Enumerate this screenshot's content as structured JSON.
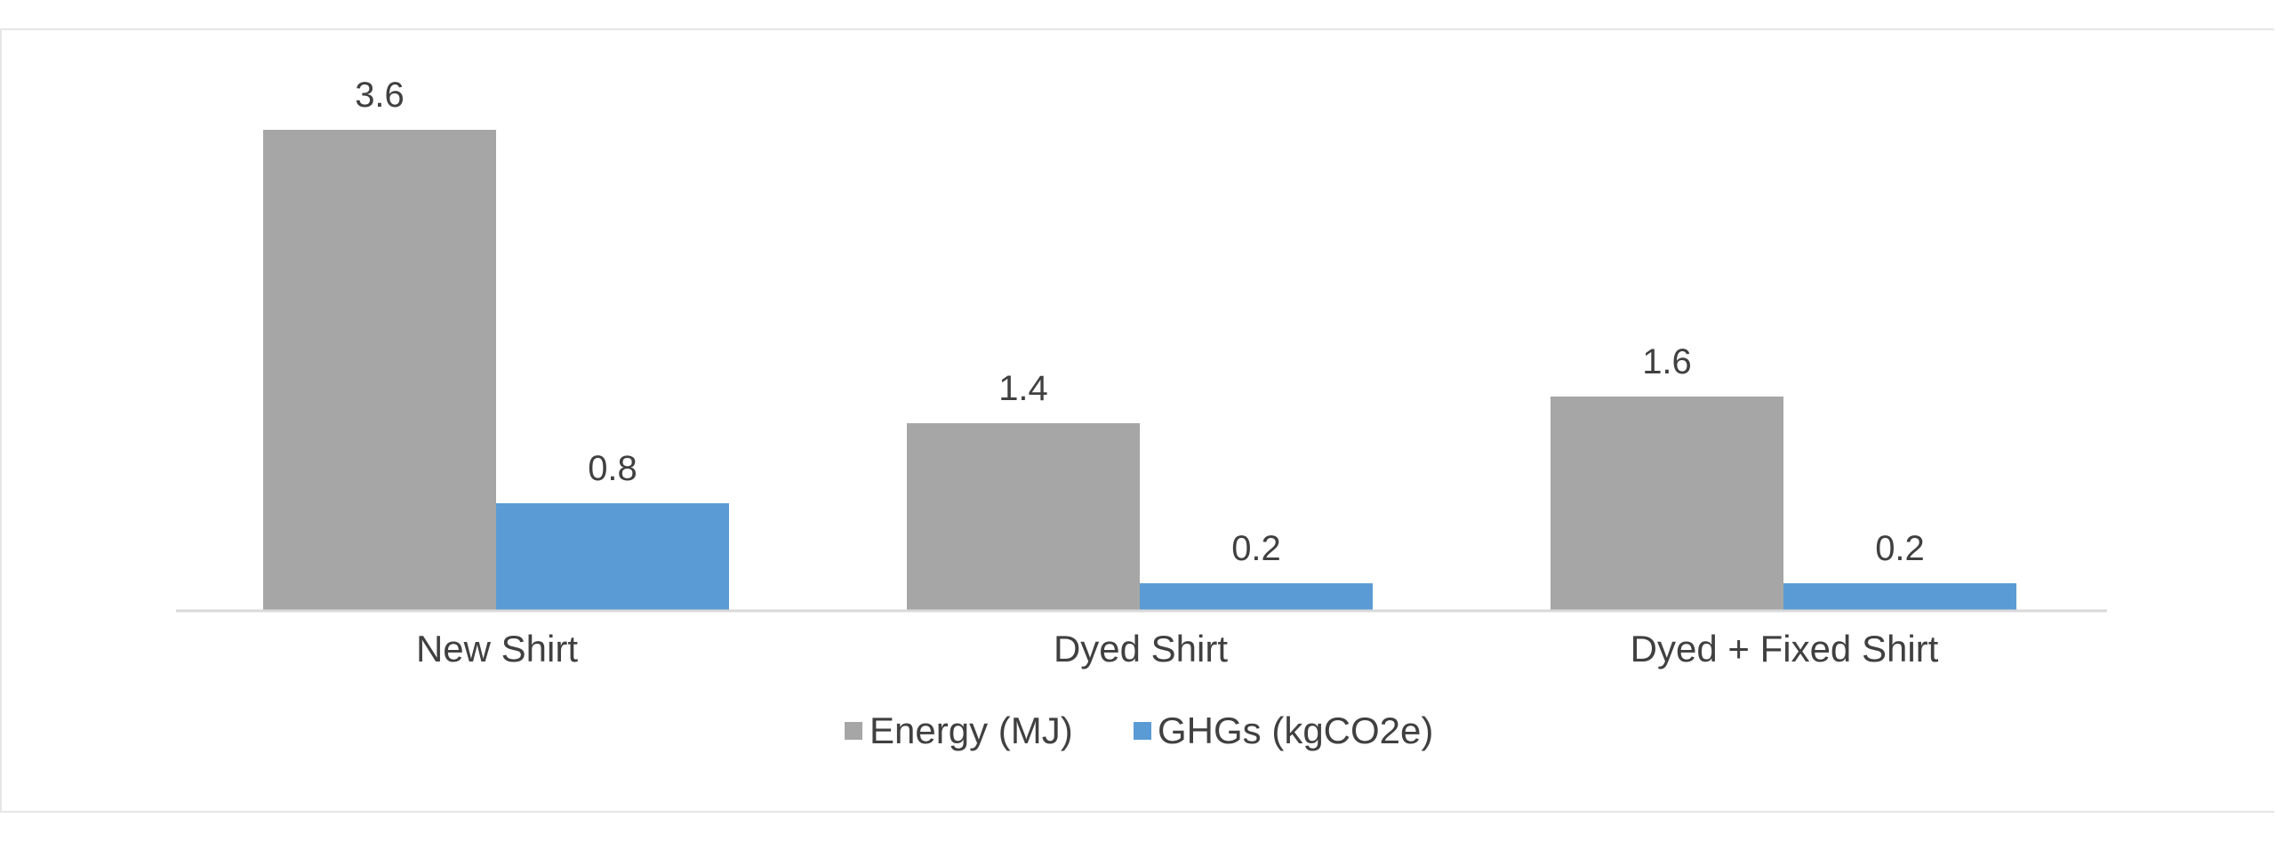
{
  "chart_data": {
    "type": "bar",
    "title": "",
    "xlabel": "",
    "ylabel": "",
    "categories": [
      "New Shirt",
      "Dyed Shirt",
      "Dyed + Fixed Shirt"
    ],
    "series": [
      {
        "name": "Energy (MJ)",
        "color": "#a6a6a6",
        "values": [
          3.6,
          1.4,
          1.6
        ]
      },
      {
        "name": "GHGs (kgCO2e)",
        "color": "#5b9bd5",
        "values": [
          0.8,
          0.2,
          0.2
        ]
      }
    ],
    "value_labels": [
      [
        "3.6",
        "1.4",
        "1.6"
      ],
      [
        "0.8",
        "0.2",
        "0.2"
      ]
    ],
    "ylim": [
      0,
      4.0
    ],
    "grid": false,
    "legend_position": "bottom"
  }
}
